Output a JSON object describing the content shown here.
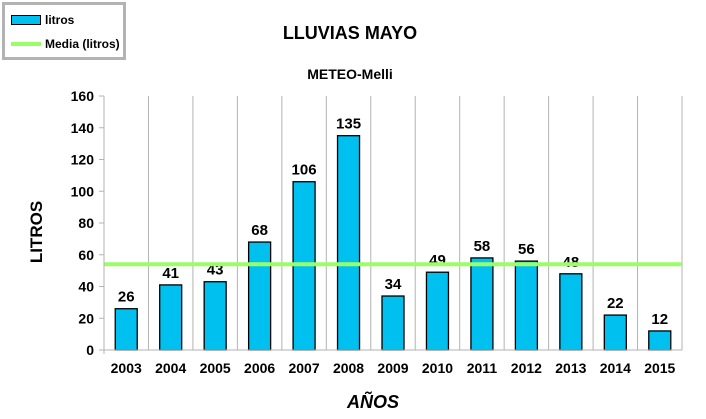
{
  "chart_data": {
    "type": "bar",
    "title": "LLUVIAS MAYO",
    "subtitle": "METEO-Melli",
    "xlabel": "AÑOS",
    "ylabel": "LITROS",
    "categories": [
      "2003",
      "2004",
      "2005",
      "2006",
      "2007",
      "2008",
      "2009",
      "2010",
      "2011",
      "2012",
      "2013",
      "2014",
      "2015"
    ],
    "series": [
      {
        "name": "litros",
        "values": [
          26,
          41,
          43,
          68,
          106,
          135,
          34,
          49,
          58,
          56,
          48,
          22,
          12
        ]
      }
    ],
    "mean_line": {
      "name": "Media (litros)",
      "value": 54
    },
    "ylim": [
      0,
      160
    ],
    "yticks": [
      0,
      20,
      40,
      60,
      80,
      100,
      120,
      140,
      160
    ],
    "grid": "vertical",
    "legend_position": "top-left",
    "colors": {
      "bar": "#00c0f0",
      "bar_stroke": "#000000",
      "mean": "#99ff66",
      "grid": "#b3b3b3",
      "axis": "#b3b3b3"
    }
  }
}
